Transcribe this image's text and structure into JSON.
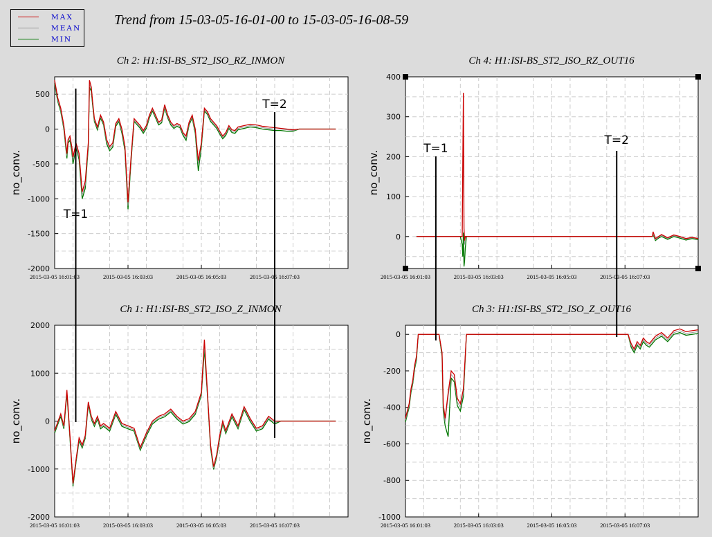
{
  "title": "Trend from 15-03-05-16-01-00 to 15-03-05-16-08-59",
  "legend": {
    "items": [
      {
        "label": "MAX",
        "color": "#cc0000"
      },
      {
        "label": "MEAN",
        "color": "#999999"
      },
      {
        "label": "MIN",
        "color": "#007700"
      }
    ]
  },
  "chart_data": [
    {
      "type": "line",
      "title": "Ch 2: H1:ISI-BS_ST2_ISO_RZ_INMON",
      "ylabel": "no_conv.",
      "ylim": [
        -2000,
        750
      ],
      "yticks": [
        500,
        0,
        -500,
        -1000,
        -1500,
        -2000
      ],
      "xlim": [
        0,
        480
      ],
      "xticks": [
        {
          "value": 0,
          "label": "2015-03-05 16:01:03"
        },
        {
          "value": 120,
          "label": "2015-03-05 16:03:03"
        },
        {
          "value": 240,
          "label": "2015-03-05 16:05:03"
        },
        {
          "value": 360,
          "label": "2015-03-05 16:07:03"
        }
      ],
      "x": [
        0,
        5,
        10,
        15,
        20,
        22,
        25,
        28,
        30,
        35,
        40,
        45,
        50,
        55,
        57,
        60,
        62,
        65,
        70,
        75,
        80,
        85,
        90,
        95,
        100,
        105,
        110,
        115,
        120,
        125,
        130,
        135,
        140,
        145,
        150,
        155,
        160,
        165,
        170,
        175,
        180,
        185,
        190,
        195,
        200,
        205,
        210,
        215,
        220,
        225,
        230,
        235,
        240,
        245,
        250,
        255,
        260,
        265,
        270,
        275,
        280,
        285,
        290,
        295,
        300,
        310,
        320,
        330,
        340,
        350,
        360,
        370,
        380,
        390,
        400,
        410,
        420,
        430,
        440,
        450,
        460
      ],
      "series": [
        {
          "name": "MAX",
          "values": [
            700,
            450,
            300,
            50,
            -350,
            -150,
            -100,
            -250,
            -400,
            -200,
            -350,
            -900,
            -750,
            -200,
            700,
            600,
            400,
            150,
            30,
            200,
            100,
            -150,
            -250,
            -200,
            80,
            150,
            0,
            -250,
            -1050,
            -400,
            150,
            100,
            50,
            -20,
            50,
            200,
            300,
            200,
            100,
            130,
            350,
            200,
            100,
            50,
            80,
            60,
            -50,
            -100,
            100,
            200,
            0,
            -450,
            -200,
            300,
            250,
            150,
            100,
            50,
            -30,
            -100,
            -50,
            50,
            -10,
            -20,
            30,
            50,
            70,
            60,
            40,
            30,
            20,
            10,
            0,
            -10,
            0,
            0,
            0,
            0,
            0,
            0,
            0
          ]
        },
        {
          "name": "MEAN",
          "values": [
            680,
            420,
            270,
            20,
            -380,
            -170,
            -130,
            -280,
            -450,
            -230,
            -400,
            -950,
            -800,
            -230,
            650,
            570,
            380,
            130,
            10,
            180,
            80,
            -180,
            -280,
            -230,
            60,
            130,
            -30,
            -280,
            -1100,
            -430,
            130,
            80,
            30,
            -40,
            30,
            180,
            280,
            180,
            80,
            110,
            320,
            180,
            80,
            30,
            60,
            40,
            -70,
            -130,
            80,
            180,
            -30,
            -500,
            -230,
            280,
            230,
            130,
            80,
            30,
            -50,
            -120,
            -70,
            30,
            -30,
            -40,
            10,
            30,
            50,
            40,
            20,
            10,
            0,
            0,
            -10,
            -20,
            0,
            0,
            0,
            0,
            0,
            0,
            0
          ]
        },
        {
          "name": "MIN",
          "values": [
            650,
            400,
            250,
            0,
            -420,
            -200,
            -160,
            -320,
            -500,
            -260,
            -440,
            -1000,
            -850,
            -260,
            600,
            540,
            350,
            110,
            -10,
            160,
            60,
            -210,
            -310,
            -260,
            40,
            110,
            -60,
            -310,
            -1150,
            -460,
            110,
            60,
            10,
            -60,
            10,
            160,
            260,
            160,
            60,
            90,
            300,
            160,
            60,
            10,
            40,
            20,
            -90,
            -160,
            60,
            160,
            -60,
            -600,
            -260,
            260,
            210,
            110,
            60,
            10,
            -70,
            -140,
            -90,
            10,
            -50,
            -60,
            -10,
            10,
            30,
            20,
            0,
            -10,
            -20,
            -20,
            -30,
            -30,
            0,
            0,
            0,
            0,
            0,
            0,
            0
          ]
        }
      ],
      "annotations": [
        {
          "label": "T=1",
          "x": 30
        },
        {
          "label": "T=2",
          "x": 360
        }
      ]
    },
    {
      "type": "line",
      "title": "Ch 4: H1:ISI-BS_ST2_ISO_RZ_OUT16",
      "ylabel": "no_conv.",
      "ylim": [
        -80,
        400
      ],
      "yticks": [
        400,
        300,
        200,
        100,
        0
      ],
      "xlim": [
        0,
        480
      ],
      "xticks": [
        {
          "value": 0,
          "label": "2015-03-05 16:01:03"
        },
        {
          "value": 120,
          "label": "2015-03-05 16:03:03"
        },
        {
          "value": 240,
          "label": "2015-03-05 16:05:03"
        },
        {
          "value": 360,
          "label": "2015-03-05 16:07:03"
        }
      ],
      "x": [
        18,
        60,
        90,
        93,
        94,
        95,
        96,
        97,
        98,
        100,
        102,
        120,
        200,
        300,
        405,
        406,
        410,
        415,
        420,
        430,
        440,
        450,
        460,
        470,
        480
      ],
      "series": [
        {
          "name": "MAX",
          "values": [
            0,
            0,
            0,
            0,
            180,
            360,
            20,
            -10,
            0,
            0,
            0,
            0,
            0,
            0,
            0,
            12,
            -5,
            0,
            5,
            -3,
            4,
            0,
            -5,
            -2,
            -5
          ]
        },
        {
          "name": "MEAN",
          "values": [
            0,
            0,
            0,
            0,
            150,
            300,
            10,
            -20,
            0,
            0,
            0,
            0,
            0,
            0,
            0,
            8,
            -8,
            -2,
            3,
            -5,
            2,
            -2,
            -7,
            -3,
            -6
          ]
        },
        {
          "name": "MIN",
          "values": [
            0,
            0,
            0,
            -20,
            -50,
            10,
            -75,
            -60,
            -30,
            0,
            0,
            0,
            0,
            0,
            0,
            5,
            -10,
            -4,
            0,
            -7,
            0,
            -4,
            -9,
            -5,
            -8
          ]
        }
      ],
      "annotations": [
        {
          "label": "T=1",
          "x": 60
        },
        {
          "label": "T=2",
          "x": 360
        }
      ]
    },
    {
      "type": "line",
      "title": "Ch 1: H1:ISI-BS_ST2_ISO_Z_INMON",
      "ylabel": "no_conv.",
      "ylim": [
        -2000,
        2000
      ],
      "yticks": [
        2000,
        1000,
        0,
        -1000,
        -2000
      ],
      "xlim": [
        0,
        480
      ],
      "xticks": [
        {
          "value": 0,
          "label": "2015-03-05 16:01:03"
        },
        {
          "value": 120,
          "label": "2015-03-05 16:03:03"
        },
        {
          "value": 240,
          "label": "2015-03-05 16:05:03"
        },
        {
          "value": 360,
          "label": "2015-03-05 16:07:03"
        }
      ],
      "x": [
        0,
        10,
        15,
        20,
        25,
        30,
        35,
        40,
        45,
        50,
        55,
        60,
        65,
        70,
        75,
        80,
        90,
        100,
        110,
        120,
        130,
        140,
        150,
        160,
        170,
        180,
        190,
        200,
        210,
        220,
        230,
        240,
        245,
        250,
        255,
        260,
        265,
        270,
        275,
        280,
        290,
        300,
        310,
        320,
        330,
        340,
        350,
        360,
        370,
        380,
        390,
        400,
        410,
        420,
        430,
        440,
        450,
        460
      ],
      "series": [
        {
          "name": "MAX",
          "values": [
            -200,
            150,
            -100,
            650,
            -300,
            -1300,
            -800,
            -350,
            -500,
            -300,
            400,
            100,
            -50,
            100,
            -100,
            -50,
            -150,
            200,
            -50,
            -100,
            -150,
            -550,
            -250,
            0,
            100,
            150,
            250,
            100,
            0,
            50,
            200,
            600,
            1700,
            600,
            -500,
            -950,
            -700,
            -300,
            0,
            -200,
            150,
            -100,
            300,
            50,
            -150,
            -100,
            100,
            0,
            0,
            0,
            0,
            0,
            0,
            0,
            0,
            0,
            0,
            0
          ]
        },
        {
          "name": "MEAN",
          "values": [
            -220,
            130,
            -130,
            620,
            -330,
            -1330,
            -830,
            -380,
            -530,
            -330,
            370,
            70,
            -80,
            70,
            -130,
            -80,
            -180,
            170,
            -80,
            -130,
            -180,
            -580,
            -280,
            -30,
            70,
            120,
            220,
            70,
            -30,
            20,
            170,
            570,
            1600,
            570,
            -530,
            -980,
            -730,
            -330,
            -30,
            -230,
            120,
            -130,
            270,
            20,
            -180,
            -130,
            70,
            -30,
            0,
            0,
            0,
            0,
            0,
            0,
            0,
            0,
            0,
            0
          ]
        },
        {
          "name": "MIN",
          "values": [
            -250,
            100,
            -160,
            580,
            -360,
            -1360,
            -860,
            -410,
            -560,
            -360,
            340,
            40,
            -110,
            40,
            -160,
            -110,
            -210,
            140,
            -110,
            -160,
            -210,
            -610,
            -310,
            -60,
            40,
            90,
            190,
            40,
            -60,
            -10,
            140,
            540,
            1500,
            540,
            -560,
            -1010,
            -760,
            -360,
            -60,
            -260,
            90,
            -160,
            240,
            -10,
            -210,
            -160,
            40,
            -60,
            0,
            0,
            0,
            0,
            0,
            0,
            0,
            0,
            0,
            0
          ]
        }
      ],
      "annotations": []
    },
    {
      "type": "line",
      "title": "Ch 3: H1:ISI-BS_ST2_ISO_Z_OUT16",
      "ylabel": "no_conv.",
      "ylim": [
        -1000,
        50
      ],
      "yticks": [
        0,
        -200,
        -400,
        -600,
        -800,
        -1000
      ],
      "xlim": [
        0,
        480
      ],
      "xticks": [
        {
          "value": 0,
          "label": "2015-03-05 16:01:03"
        },
        {
          "value": 120,
          "label": "2015-03-05 16:03:03"
        },
        {
          "value": 240,
          "label": "2015-03-05 16:05:03"
        },
        {
          "value": 360,
          "label": "2015-03-05 16:07:03"
        }
      ],
      "x": [
        0,
        3,
        6,
        9,
        12,
        15,
        18,
        21,
        25,
        30,
        35,
        55,
        60,
        62,
        65,
        70,
        75,
        80,
        85,
        90,
        95,
        100,
        110,
        120,
        200,
        300,
        360,
        365,
        370,
        375,
        380,
        385,
        390,
        395,
        400,
        410,
        420,
        430,
        440,
        450,
        460,
        470,
        480
      ],
      "series": [
        {
          "name": "MAX",
          "values": [
            -460,
            -420,
            -380,
            -300,
            -250,
            -170,
            -120,
            0,
            0,
            0,
            0,
            0,
            -100,
            -380,
            -460,
            -320,
            -200,
            -220,
            -350,
            -380,
            -300,
            0,
            0,
            0,
            0,
            0,
            0,
            0,
            -50,
            -80,
            -40,
            -60,
            -20,
            -40,
            -50,
            -10,
            10,
            -20,
            20,
            30,
            15,
            20,
            25
          ]
        },
        {
          "name": "MEAN",
          "values": [
            -470,
            -430,
            -390,
            -310,
            -260,
            -180,
            -130,
            0,
            0,
            0,
            0,
            0,
            -110,
            -400,
            -480,
            -340,
            -220,
            -240,
            -370,
            -400,
            -320,
            0,
            0,
            0,
            0,
            0,
            0,
            0,
            -60,
            -90,
            -50,
            -70,
            -30,
            -50,
            -60,
            -20,
            0,
            -30,
            10,
            20,
            5,
            10,
            15
          ]
        },
        {
          "name": "MIN",
          "values": [
            -480,
            -440,
            -400,
            -320,
            -270,
            -190,
            -140,
            0,
            0,
            0,
            0,
            0,
            -120,
            -420,
            -500,
            -560,
            -240,
            -260,
            -390,
            -420,
            -340,
            0,
            0,
            0,
            0,
            0,
            0,
            0,
            -70,
            -100,
            -60,
            -80,
            -40,
            -60,
            -70,
            -30,
            -10,
            -40,
            0,
            10,
            -5,
            0,
            5
          ]
        }
      ],
      "annotations": []
    }
  ]
}
